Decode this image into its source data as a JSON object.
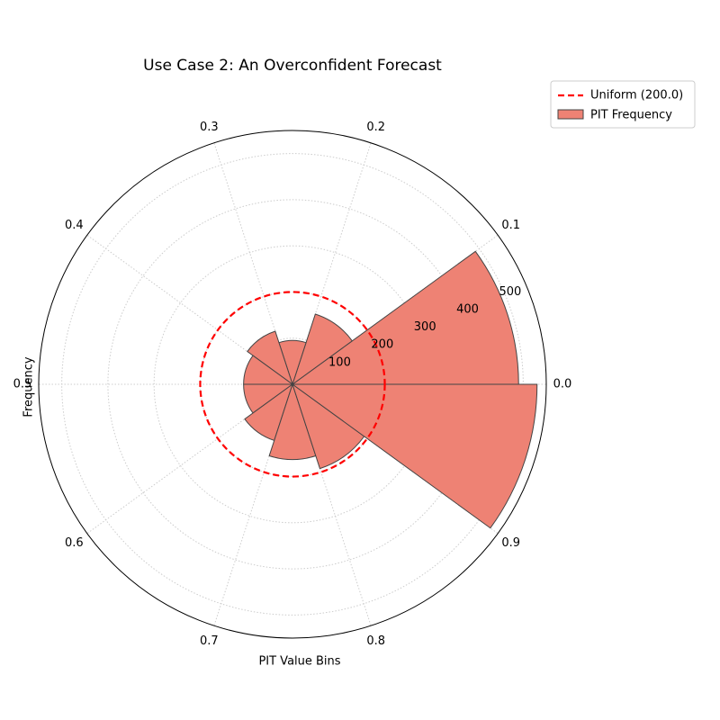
{
  "chart_data": {
    "type": "polar_bar",
    "title": "Use Case 2: An Overconfident Forecast",
    "xlabel": "PIT Value Bins",
    "ylabel": "Frequency",
    "categories": [
      "0.0",
      "0.1",
      "0.2",
      "0.3",
      "0.4",
      "0.5",
      "0.6",
      "0.7",
      "0.8",
      "0.9"
    ],
    "series": [
      {
        "name": "PIT Frequency",
        "color": "#ee8274",
        "values": [
          490,
          160,
          95,
          121,
          106,
          106,
          128,
          163,
          192,
          530
        ]
      }
    ],
    "reference": {
      "name": "Uniform (200.0)",
      "value": 200,
      "color": "#ff0000"
    },
    "ylim": [
      0,
      550
    ],
    "yticks": [
      100,
      200,
      300,
      400,
      500
    ],
    "grid": true,
    "legend": "upper right"
  }
}
